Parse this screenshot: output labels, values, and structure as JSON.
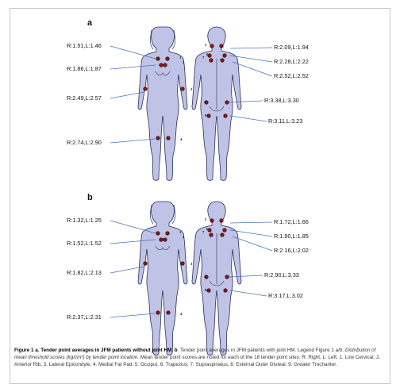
{
  "panels": [
    {
      "letter": "a",
      "scores": [
        "R:1.51,L:1.46",
        "R:1.86,L:1.87",
        "R:2.49,L:2.57",
        "R:2.74,L:2.90",
        "R:2.09,L:1.94",
        "R:2.28,L:2.22",
        "R:2.52,L:2.52",
        "R:3.38,L:3.30",
        "R:3.11,L:3.23"
      ]
    },
    {
      "letter": "b",
      "scores": [
        "R:1.32,L:1.25",
        "R:1.52,L:1.52",
        "R:1.82,L:2.13",
        "R:2.37,L:2.31",
        "R:1.72,L:1.66",
        "R:1.90,L:1.85",
        "R:2.16,L:2.02",
        "R:2.90,L:3.33",
        "R:3.17,L:3.02"
      ]
    }
  ],
  "point_numbers": [
    "1",
    "2",
    "3",
    "4",
    "5",
    "6",
    "7",
    "8",
    "9"
  ],
  "caption": {
    "title": "Figure 1 a. Tender point averages in JFM patients without joint HM. b",
    "text1": ". Tender point averages in JFM patients with joint HM. Legend Figure 1 a/b. ",
    "italic": "Distribution of mean threshold scores (kg/cm²) by tender point location.",
    "text2": " Mean tender point scores are noted for each of the 18 tender point sites. R: Right, L: Left, 1. Low Cervical, 2. Anterior Rib, 3. Lateral Epicondyle, 4. Medial Fat Pad, 5. Occiput, 6. Trapezius, 7. Supraspinatus, 8. External Outer Gluteal, 9. Greater Trochanter."
  },
  "colors": {
    "body_fill": "#bfc3e6",
    "outline": "#2c2f5e",
    "leader": "#4a73c0",
    "dot": "#7a1b1b"
  }
}
